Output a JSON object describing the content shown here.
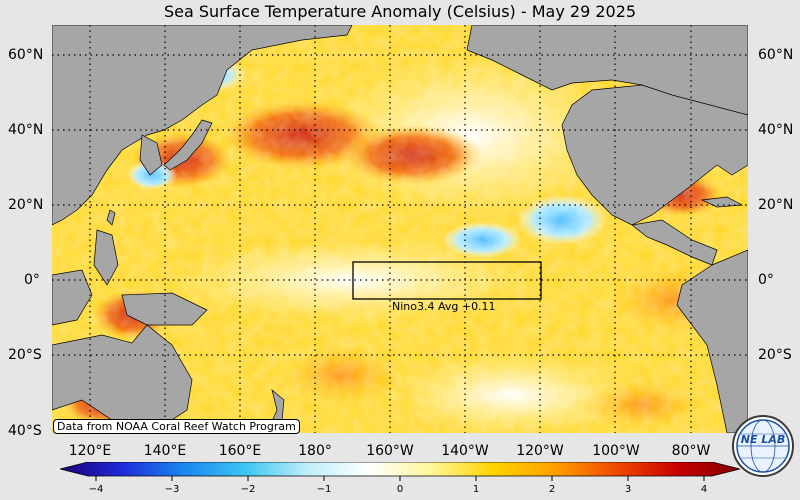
{
  "title": "Sea Surface Temperature Anomaly (Celsius) - May 29 2025",
  "latitude_labels": [
    "60°N",
    "40°N",
    "20°N",
    "0°",
    "20°S",
    "40°S"
  ],
  "longitude_labels": [
    "120°E",
    "140°E",
    "160°E",
    "180°",
    "160°W",
    "140°W",
    "120°W",
    "100°W",
    "80°W"
  ],
  "source_note": "Data from NOAA Coral Reef Watch Program",
  "nino_box": {
    "label": "Nino3.4 Avg  +0.11"
  },
  "colorbar": {
    "ticks": [
      "−4",
      "−3",
      "−2",
      "−1",
      "0",
      "1",
      "2",
      "3",
      "4"
    ],
    "colors": [
      "#1a0078",
      "#1e2bd8",
      "#1a86f0",
      "#3ec6f2",
      "#bfeefa",
      "#ffffff",
      "#fff59a",
      "#ffd400",
      "#ffa000",
      "#f04a00",
      "#c80000",
      "#820000"
    ]
  },
  "logo": {
    "text": "NE LAB",
    "icon": "nexlab-globe-logo"
  },
  "colors": {
    "land": "#a6a6a6",
    "warm": "#ffd21a",
    "hot": "#e43a00",
    "cool": "#9fe6ff",
    "cold": "#2fa8ff"
  }
}
